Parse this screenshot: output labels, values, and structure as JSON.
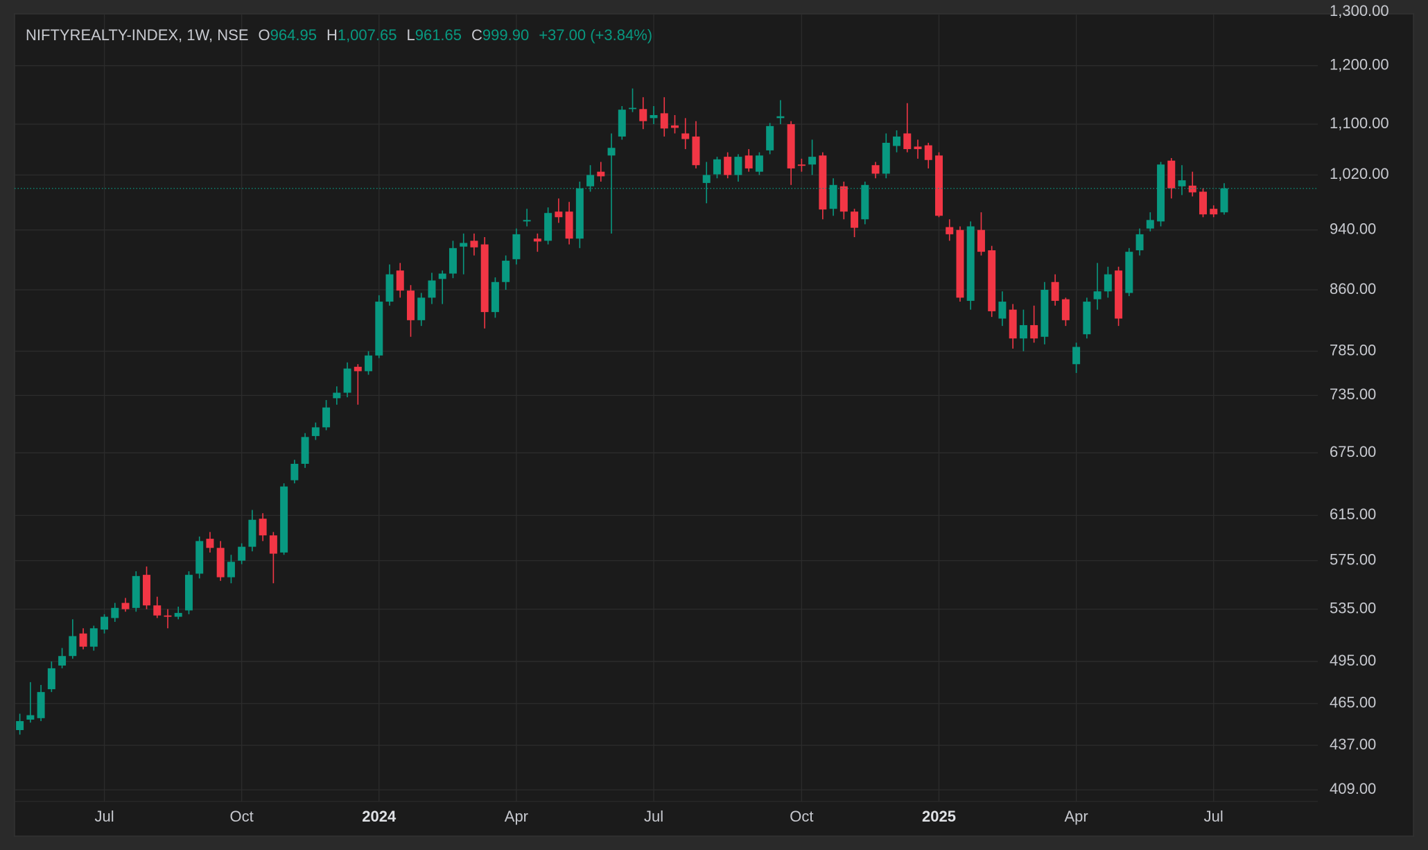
{
  "header": {
    "symbol": "NIFTYREALTY-INDEX, 1W, NSE",
    "open_label": "O",
    "open": "964.95",
    "high_label": "H",
    "high": "1,007.65",
    "low_label": "L",
    "low": "961.65",
    "close_label": "C",
    "close": "999.90",
    "change": "+37.00 (+3.84%)"
  },
  "chart_data": {
    "type": "candlestick",
    "log_scale": true,
    "grid": true,
    "up_color": "#089981",
    "down_color": "#f23645",
    "categories": [
      null,
      null,
      null,
      null,
      null,
      null,
      null,
      null,
      "Jul",
      null,
      null,
      null,
      null,
      null,
      null,
      null,
      null,
      null,
      null,
      null,
      null,
      "Oct",
      null,
      null,
      null,
      null,
      null,
      null,
      null,
      null,
      null,
      null,
      null,
      null,
      "2024",
      null,
      null,
      null,
      null,
      null,
      null,
      null,
      null,
      null,
      null,
      null,
      null,
      "Apr",
      null,
      null,
      null,
      null,
      null,
      null,
      null,
      null,
      null,
      null,
      null,
      null,
      "Jul",
      null,
      null,
      null,
      null,
      null,
      null,
      null,
      null,
      null,
      null,
      null,
      null,
      null,
      "Oct",
      null,
      null,
      null,
      null,
      null,
      null,
      null,
      null,
      null,
      null,
      null,
      null,
      "2025",
      null,
      null,
      null,
      null,
      null,
      null,
      null,
      null,
      null,
      null,
      null,
      null,
      "Apr",
      null,
      null,
      null,
      null,
      null,
      null,
      null,
      null,
      null,
      null,
      null,
      null,
      "Jul",
      null
    ],
    "open": [
      447,
      454,
      455,
      475,
      492,
      499,
      516,
      506,
      519,
      528,
      540,
      536,
      563,
      538,
      530,
      529,
      534,
      564,
      594,
      586,
      561,
      575,
      587,
      612,
      597,
      582,
      648,
      664,
      692,
      701,
      732,
      738,
      767,
      762,
      780,
      845,
      885,
      859,
      822,
      850,
      874,
      881,
      917,
      925,
      920,
      832,
      870,
      900,
      952,
      928,
      925,
      966,
      966,
      928,
      1003,
      1025,
      1050,
      1080,
      1125,
      1125,
      1110,
      1118,
      1098,
      1085,
      1080,
      1008,
      1021,
      1048,
      1020,
      1050,
      1025,
      1058,
      1110,
      1100,
      1036,
      1036,
      1050,
      970,
      1003,
      966,
      955,
      1035,
      1022,
      1065,
      1085,
      1064,
      1066,
      1050,
      944,
      940,
      846,
      940,
      912,
      824,
      835,
      800,
      816,
      802,
      870,
      848,
      770,
      805,
      848,
      858,
      885,
      856,
      912,
      942,
      952,
      1042,
      1003,
      1004,
      995,
      970,
      964.95
    ],
    "high": [
      458,
      480,
      478,
      495,
      505,
      527,
      520,
      522,
      531,
      540,
      544,
      566,
      570,
      545,
      535,
      537,
      566,
      596,
      600,
      592,
      580,
      590,
      620,
      617,
      600,
      645,
      668,
      695,
      706,
      730,
      745,
      772,
      770,
      785,
      853,
      893,
      895,
      866,
      856,
      882,
      885,
      925,
      935,
      935,
      930,
      876,
      905,
      942,
      970,
      935,
      972,
      985,
      980,
      1010,
      1035,
      1040,
      1085,
      1130,
      1160,
      1145,
      1130,
      1145,
      1115,
      1110,
      1105,
      1040,
      1048,
      1055,
      1052,
      1060,
      1055,
      1102,
      1140,
      1105,
      1045,
      1075,
      1055,
      1015,
      1010,
      970,
      1010,
      1040,
      1085,
      1090,
      1135,
      1075,
      1070,
      1055,
      955,
      945,
      952,
      965,
      918,
      858,
      842,
      835,
      840,
      870,
      880,
      850,
      795,
      850,
      895,
      890,
      890,
      915,
      942,
      965,
      1040,
      1046,
      1035,
      1025,
      1000,
      975,
      1007.65
    ],
    "low": [
      444,
      452,
      453,
      473,
      490,
      497,
      504,
      503,
      516,
      525,
      533,
      533,
      535,
      528,
      520,
      527,
      531,
      560,
      582,
      558,
      556,
      572,
      583,
      592,
      556,
      580,
      645,
      660,
      688,
      698,
      725,
      733,
      725,
      758,
      777,
      840,
      850,
      802,
      815,
      842,
      842,
      875,
      880,
      905,
      812,
      825,
      860,
      893,
      945,
      910,
      920,
      950,
      920,
      915,
      995,
      1010,
      935,
      1075,
      1120,
      1092,
      1100,
      1080,
      1085,
      1060,
      1030,
      978,
      1015,
      1015,
      1010,
      1025,
      1020,
      1052,
      1100,
      1005,
      1025,
      1020,
      955,
      960,
      955,
      930,
      948,
      1015,
      1015,
      1055,
      1055,
      1045,
      1030,
      958,
      925,
      845,
      835,
      905,
      826,
      815,
      788,
      785,
      795,
      793,
      840,
      815,
      760,
      800,
      835,
      850,
      815,
      852,
      905,
      938,
      945,
      985,
      990,
      988,
      958,
      958,
      961.65
    ],
    "close": [
      453,
      457,
      473,
      490,
      499,
      514,
      506,
      520,
      529,
      536,
      535,
      562,
      538,
      530,
      529,
      532,
      563,
      592,
      586,
      561,
      574,
      587,
      611,
      597,
      581,
      642,
      664,
      691,
      701,
      722,
      738,
      765,
      762,
      780,
      845,
      880,
      859,
      822,
      850,
      872,
      881,
      915,
      922,
      916,
      832,
      870,
      898,
      934,
      954,
      924,
      964,
      958,
      928,
      1000,
      1020,
      1018,
      1062,
      1124,
      1127,
      1105,
      1115,
      1093,
      1094,
      1076,
      1035,
      1020,
      1044,
      1020,
      1048,
      1030,
      1050,
      1097,
      1113,
      1030,
      1034,
      1048,
      969,
      1005,
      966,
      943,
      1005,
      1022,
      1070,
      1080,
      1060,
      1060,
      1043,
      960,
      934,
      850,
      945,
      910,
      833,
      845,
      800,
      816,
      800,
      860,
      846,
      822,
      790,
      845,
      858,
      880,
      824,
      910,
      934,
      954,
      1036,
      1000,
      1012,
      994,
      962,
      962,
      999.9
    ],
    "ylim": [
      402,
      1296
    ],
    "yticks": [
      {
        "value": 1300,
        "label": "1,300.00"
      },
      {
        "value": 1200,
        "label": "1,200.00"
      },
      {
        "value": 1100,
        "label": "1,100.00"
      },
      {
        "value": 1020,
        "label": "1,020.00"
      },
      {
        "value": 940,
        "label": "940.00"
      },
      {
        "value": 860,
        "label": "860.00"
      },
      {
        "value": 785,
        "label": "785.00"
      },
      {
        "value": 735,
        "label": "735.00"
      },
      {
        "value": 675,
        "label": "675.00"
      },
      {
        "value": 615,
        "label": "615.00"
      },
      {
        "value": 575,
        "label": "575.00"
      },
      {
        "value": 535,
        "label": "535.00"
      },
      {
        "value": 495,
        "label": "495.00"
      },
      {
        "value": 465,
        "label": "465.00"
      },
      {
        "value": 437,
        "label": "437.00"
      },
      {
        "value": 409,
        "label": "409.00"
      }
    ]
  }
}
